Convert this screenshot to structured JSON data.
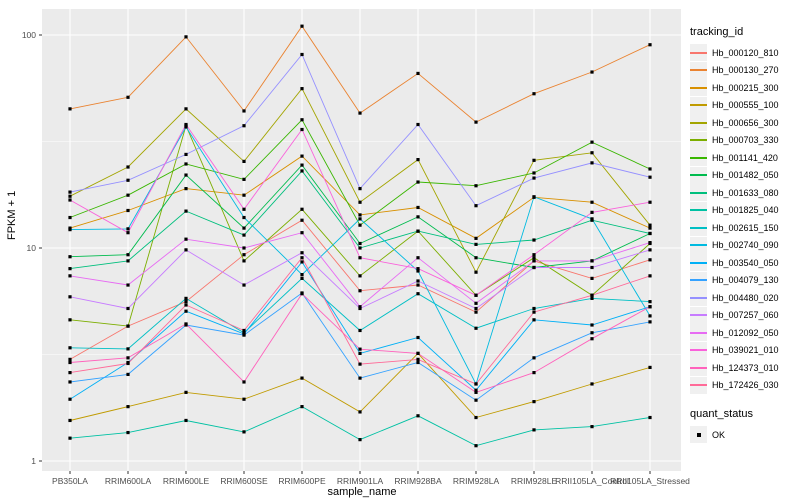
{
  "figure": {
    "background": "#FFFFFF",
    "panel_background": "#EBEBEB",
    "grid_major_color": "#FFFFFF",
    "grid_minor_color": "#F7F7F7",
    "tick_color": "#333333",
    "tick_label_color": "#4D4D4D",
    "marker_color": "#000000"
  },
  "chart_data": {
    "type": "line",
    "title": "",
    "xlabel": "sample_name",
    "ylabel": "FPKM + 1",
    "y_scale": "log10",
    "ylim": [
      0.9,
      131
    ],
    "y_ticks": [
      1,
      10,
      100
    ],
    "y_minor_ticks": [
      3.162,
      31.62
    ],
    "grid": true,
    "legend_position": "right",
    "legend_titles": {
      "series": "tracking_id",
      "quant": "quant_status"
    },
    "quant_status_entries": [
      {
        "label": "OK",
        "marker": "black-square"
      }
    ],
    "categories": [
      "PB350LA",
      "RRIM600LA",
      "RRIM600LE",
      "RRIM600SE",
      "RRIM600PE",
      "RRIM901LA",
      "RRIM928BA",
      "RRIM928LA",
      "RRIM928LE",
      "RRII105LA_Control",
      "RRII105LA_Stressed"
    ],
    "series": [
      {
        "name": "Hb_000120_810",
        "color": "#F8766D",
        "values": [
          3.0,
          4.3,
          5.6,
          9.3,
          13.5,
          6.3,
          6.7,
          5.0,
          8.7,
          7.2,
          8.8
        ]
      },
      {
        "name": "Hb_000130_270",
        "color": "#EA8331",
        "values": [
          45,
          51,
          98,
          44,
          110,
          43,
          66,
          39,
          53,
          67,
          90
        ]
      },
      {
        "name": "Hb_000215_300",
        "color": "#D89000",
        "values": [
          12.4,
          15,
          19,
          17.7,
          27,
          14.3,
          15.5,
          11.1,
          17.3,
          16.4,
          12.4
        ]
      },
      {
        "name": "Hb_000555_100",
        "color": "#C09B00",
        "values": [
          1.55,
          1.8,
          2.1,
          1.95,
          2.45,
          1.7,
          3.2,
          1.6,
          1.9,
          2.3,
          2.75
        ]
      },
      {
        "name": "Hb_000656_300",
        "color": "#A3A500",
        "values": [
          17.5,
          24,
          45,
          25.5,
          56,
          16.4,
          26,
          7.7,
          25.8,
          28,
          12.8
        ]
      },
      {
        "name": "Hb_000703_330",
        "color": "#7CAE00",
        "values": [
          4.6,
          4.3,
          37.5,
          8.7,
          15.2,
          7.4,
          12,
          6.0,
          9.0,
          6.0,
          10.5
        ]
      },
      {
        "name": "Hb_001141_420",
        "color": "#39B600",
        "values": [
          13.9,
          17.7,
          24.8,
          21,
          40,
          12.8,
          20.4,
          19.6,
          22.5,
          31.4,
          23.5
        ]
      },
      {
        "name": "Hb_001482_050",
        "color": "#00BB4E",
        "values": [
          9.1,
          9.3,
          22,
          12.4,
          24.5,
          10.5,
          14,
          9.0,
          8.1,
          8.7,
          11.7
        ]
      },
      {
        "name": "Hb_001633_080",
        "color": "#00BF7D",
        "values": [
          8.0,
          8.7,
          14.9,
          11.5,
          23,
          10,
          12,
          10.4,
          10.9,
          13.5,
          11.7
        ]
      },
      {
        "name": "Hb_001825_040",
        "color": "#00C1A3",
        "values": [
          1.28,
          1.36,
          1.55,
          1.37,
          1.8,
          1.26,
          1.63,
          1.18,
          1.4,
          1.45,
          1.6
        ]
      },
      {
        "name": "Hb_002615_150",
        "color": "#00BFC4",
        "values": [
          3.4,
          3.36,
          5.8,
          4.0,
          7.2,
          4.1,
          6.1,
          4.2,
          5.2,
          5.8,
          5.6
        ]
      },
      {
        "name": "Hb_002740_090",
        "color": "#00BAE0",
        "values": [
          12.2,
          12.3,
          37,
          13.9,
          7.5,
          13.7,
          7.8,
          2.3,
          17.4,
          13.7,
          4.8
        ]
      },
      {
        "name": "Hb_003540_050",
        "color": "#00B0F6",
        "values": [
          1.95,
          2.9,
          5.05,
          3.95,
          8.6,
          3.2,
          3.8,
          2.15,
          4.6,
          4.35,
          5.3
        ]
      },
      {
        "name": "Hb_004079_130",
        "color": "#35A2FF",
        "values": [
          2.35,
          2.55,
          4.35,
          3.9,
          6.15,
          2.45,
          2.9,
          1.93,
          3.05,
          4.0,
          4.5
        ]
      },
      {
        "name": "Hb_004480_020",
        "color": "#9590FF",
        "values": [
          18.3,
          20.8,
          27.5,
          37.5,
          81,
          19,
          38,
          15.8,
          21.3,
          25.1,
          21.5
        ]
      },
      {
        "name": "Hb_007257_060",
        "color": "#C77CFF",
        "values": [
          5.9,
          5.2,
          9.8,
          6.7,
          9.5,
          5.2,
          7.0,
          5.2,
          8.1,
          8.1,
          9.8
        ]
      },
      {
        "name": "Hb_012092_050",
        "color": "#E76BF3",
        "values": [
          7.4,
          6.7,
          11,
          10,
          11.8,
          5.3,
          9.0,
          5.5,
          8.7,
          8.7,
          10.6
        ]
      },
      {
        "name": "Hb_039021_010",
        "color": "#FA62DB",
        "values": [
          16.8,
          11.8,
          38,
          15.2,
          36,
          9.0,
          8.0,
          6.0,
          9.3,
          14.7,
          16.4
        ]
      },
      {
        "name": "Hb_124373_010",
        "color": "#FF62BC",
        "values": [
          2.9,
          3.05,
          4.4,
          2.35,
          6.1,
          3.35,
          3.2,
          2.1,
          2.6,
          3.75,
          5.3
        ]
      },
      {
        "name": "Hb_172426_030",
        "color": "#FF6A98",
        "values": [
          2.6,
          2.87,
          5.4,
          4.1,
          9.0,
          2.85,
          3.0,
          2.3,
          5.0,
          6.0,
          7.4
        ]
      }
    ]
  }
}
